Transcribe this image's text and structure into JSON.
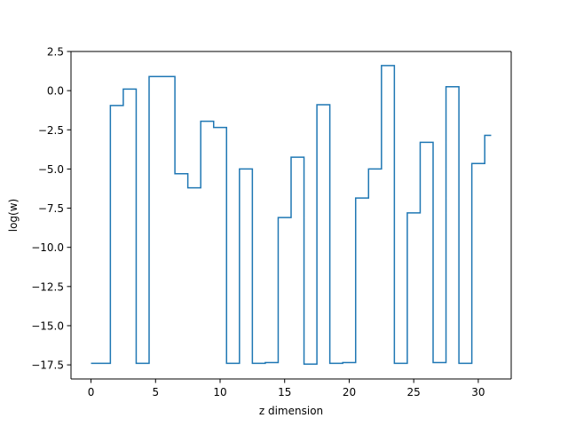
{
  "chart_data": {
    "type": "line",
    "drawstyle": "steps-mid",
    "xlabel": "z dimension",
    "ylabel": "log(w)",
    "xlim": [
      -1.55,
      32.55
    ],
    "ylim": [
      -18.4,
      2.5
    ],
    "x_ticks": [
      0,
      5,
      10,
      15,
      20,
      25,
      30
    ],
    "y_ticks": [
      2.5,
      0.0,
      -2.5,
      -5.0,
      -7.5,
      -10.0,
      -12.5,
      -15.0,
      -17.5
    ],
    "x_tick_labels": [
      "0",
      "5",
      "10",
      "15",
      "20",
      "25",
      "30"
    ],
    "y_tick_labels": [
      "2.5",
      "0.0",
      "−2.5",
      "−5.0",
      "−7.5",
      "−10.0",
      "−12.5",
      "−15.0",
      "−17.5"
    ],
    "grid": false,
    "legend": "none",
    "series": [
      {
        "color": "#1f77b4",
        "x": [
          0,
          1,
          2,
          3,
          4,
          5,
          6,
          7,
          8,
          9,
          10,
          11,
          12,
          13,
          14,
          15,
          16,
          17,
          18,
          19,
          20,
          21,
          22,
          23,
          24,
          25,
          26,
          27,
          28,
          29,
          30,
          31
        ],
        "y": [
          -17.4,
          -17.4,
          -0.95,
          0.1,
          -17.4,
          0.9,
          0.9,
          -5.3,
          -6.2,
          -1.95,
          -2.35,
          -17.4,
          -5.0,
          -17.4,
          -17.35,
          -8.1,
          -4.25,
          -17.45,
          -0.9,
          -17.4,
          -17.35,
          -6.85,
          -5.0,
          1.6,
          -17.4,
          -7.8,
          -3.3,
          -17.35,
          0.25,
          -17.4,
          -4.65,
          -2.85
        ]
      }
    ]
  }
}
